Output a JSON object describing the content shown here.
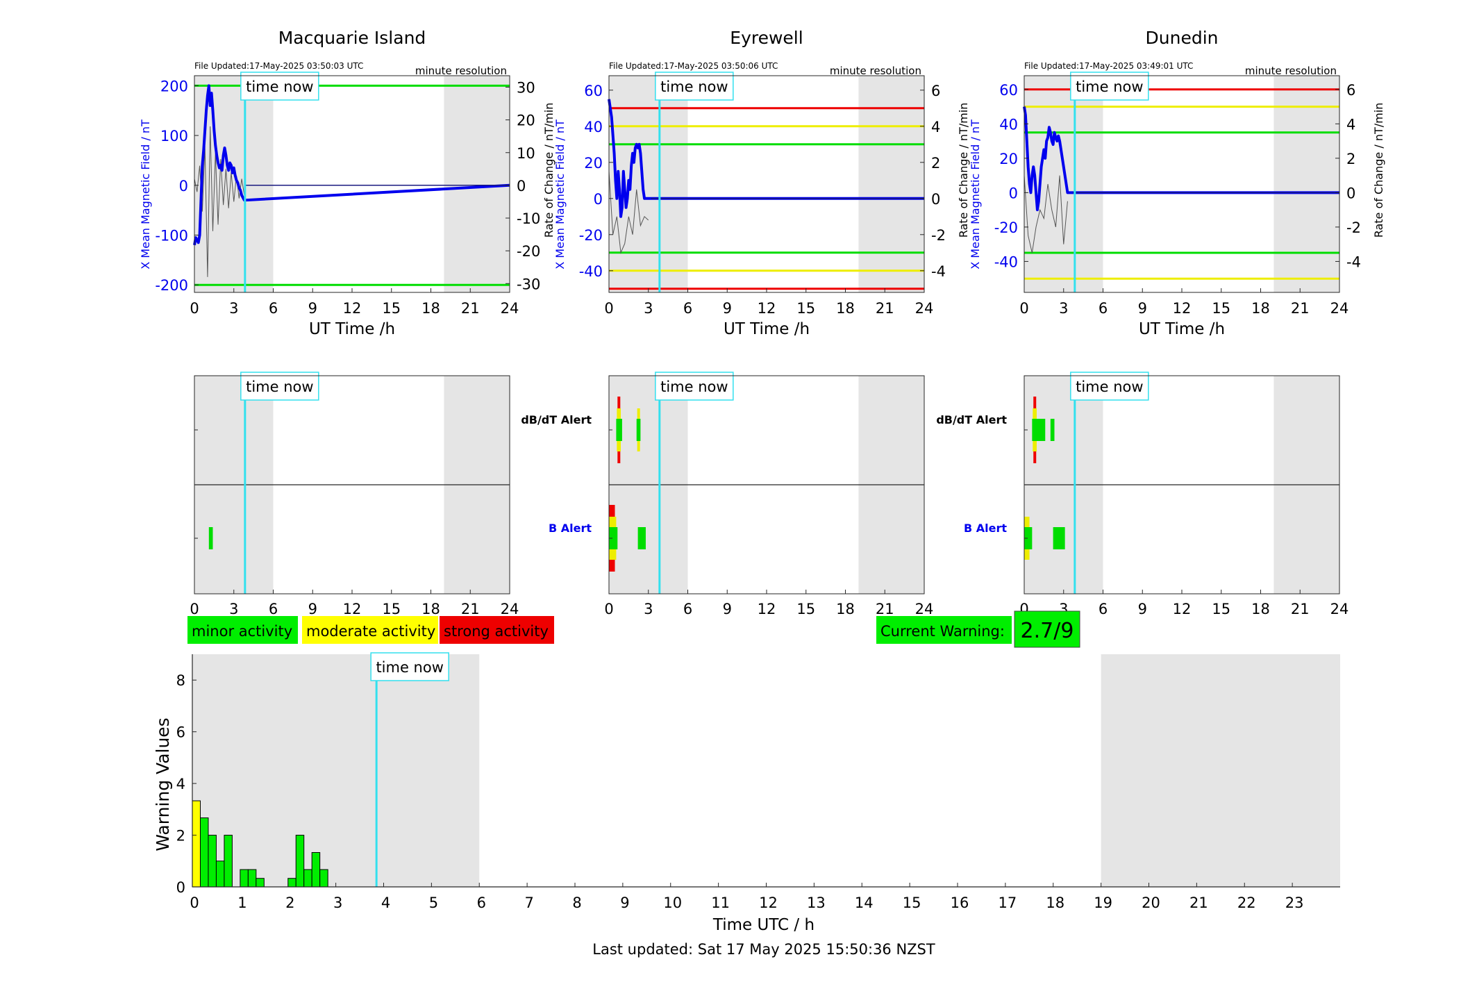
{
  "stations": [
    {
      "name": "Macquarie Island",
      "file_updated": "File Updated:17-May-2025 03:50:03 UTC",
      "resolution": "minute resolution",
      "ylabel": "X Mean Magnetic Field / nT",
      "y2label": "Rate of Change / nT/min",
      "ylim": [
        -215,
        220
      ],
      "yticks": [
        -200,
        -100,
        0,
        100,
        200
      ],
      "y2lim": [
        -32.7,
        33.5
      ],
      "y2ticks": [
        -30,
        -20,
        -10,
        0,
        10,
        20,
        30
      ],
      "thresholds": [
        {
          "value": 200,
          "color": "#00dd00"
        },
        {
          "value": -200,
          "color": "#00dd00"
        }
      ],
      "x_field": [
        0,
        0.1,
        0.2,
        0.3,
        0.4,
        0.5,
        0.6,
        0.7,
        0.8,
        0.9,
        1.0,
        1.1,
        1.2,
        1.3,
        1.4,
        1.5,
        1.6,
        1.7,
        1.8,
        1.9,
        2.0,
        2.1,
        2.2,
        2.3,
        2.4,
        2.5,
        2.6,
        2.7,
        2.8,
        2.9,
        3.0,
        3.1,
        3.2,
        3.3,
        3.4,
        3.5,
        3.6,
        3.7,
        3.8,
        24
      ],
      "y_field": [
        -120,
        -105,
        -110,
        -115,
        -100,
        -30,
        40,
        70,
        110,
        150,
        180,
        200,
        160,
        185,
        150,
        110,
        80,
        60,
        45,
        35,
        40,
        30,
        60,
        75,
        60,
        40,
        30,
        45,
        40,
        25,
        35,
        20,
        10,
        5,
        -5,
        -10,
        -20,
        -25,
        -30,
        0
      ],
      "roc_x": [
        0,
        0.2,
        0.4,
        0.6,
        0.8,
        1.0,
        1.2,
        1.4,
        1.6,
        1.8,
        2.0,
        2.2,
        2.4,
        2.6,
        2.8,
        3.0,
        3.2,
        3.4,
        3.6,
        3.8
      ],
      "roc_y": [
        2,
        -2,
        6,
        -8,
        12,
        -28,
        18,
        -14,
        10,
        -12,
        8,
        -6,
        5,
        -7,
        4,
        -5,
        3,
        -4,
        2,
        -3
      ],
      "alert_dbdt": [],
      "alert_b": [
        {
          "x0": 1.1,
          "x1": 1.4,
          "color": "#00dd00",
          "level": 1
        }
      ]
    },
    {
      "name": "Eyrewell",
      "file_updated": "File Updated:17-May-2025 03:50:06 UTC",
      "resolution": "minute resolution",
      "ylabel": "X Mean Magnetic Field / nT",
      "y2label": "Rate of Change / nT/min",
      "ylim": [
        -52,
        68
      ],
      "yticks": [
        -40,
        -20,
        0,
        20,
        40,
        60
      ],
      "y2lim": [
        -5.2,
        6.8
      ],
      "y2ticks": [
        -4,
        -2,
        0,
        2,
        4,
        6
      ],
      "thresholds": [
        {
          "value": 50,
          "color": "#ee0000"
        },
        {
          "value": 40,
          "color": "#eeee00"
        },
        {
          "value": 30,
          "color": "#00dd00"
        },
        {
          "value": -30,
          "color": "#00dd00"
        },
        {
          "value": -40,
          "color": "#eeee00"
        },
        {
          "value": -50,
          "color": "#ee0000"
        }
      ],
      "x_field": [
        0,
        0.1,
        0.2,
        0.3,
        0.4,
        0.5,
        0.6,
        0.7,
        0.8,
        0.9,
        1.0,
        1.1,
        1.2,
        1.3,
        1.4,
        1.5,
        1.6,
        1.7,
        1.8,
        1.9,
        2.0,
        2.1,
        2.2,
        2.3,
        2.4,
        2.5,
        2.6,
        2.7,
        2.8,
        2.9,
        3.0,
        3.1,
        3.2,
        24
      ],
      "y_field": [
        55,
        50,
        45,
        35,
        25,
        10,
        0,
        15,
        5,
        -10,
        -5,
        15,
        5,
        -5,
        0,
        10,
        5,
        18,
        25,
        20,
        28,
        30,
        28,
        30,
        25,
        15,
        5,
        0,
        0,
        0,
        0,
        0,
        0,
        0
      ],
      "roc_x": [
        0,
        0.3,
        0.6,
        0.9,
        1.2,
        1.5,
        1.8,
        2.1,
        2.4,
        2.7,
        3.0
      ],
      "roc_y": [
        1.5,
        -2,
        -1,
        -3,
        -2.5,
        -1,
        -2,
        0.5,
        -1.5,
        -1,
        -1.2
      ],
      "alert_dbdt": [
        {
          "x0": 0.55,
          "x1": 1.0,
          "color": "#00dd00",
          "level": 1
        },
        {
          "x0": 2.1,
          "x1": 2.4,
          "color": "#00dd00",
          "level": 1
        },
        {
          "x0": 0.6,
          "x1": 0.9,
          "color": "#eeee00",
          "level": 2
        },
        {
          "x0": 2.15,
          "x1": 2.35,
          "color": "#eeee00",
          "level": 2
        },
        {
          "x0": 0.65,
          "x1": 0.85,
          "color": "#ee0000",
          "level": 3
        }
      ],
      "alert_b": [
        {
          "x0": 0.0,
          "x1": 0.65,
          "color": "#00dd00",
          "level": 1
        },
        {
          "x0": 2.2,
          "x1": 2.8,
          "color": "#00dd00",
          "level": 1
        },
        {
          "x0": 0.0,
          "x1": 0.55,
          "color": "#eeee00",
          "level": 2
        },
        {
          "x0": 0.0,
          "x1": 0.45,
          "color": "#ee0000",
          "level": 3
        }
      ]
    },
    {
      "name": "Dunedin",
      "file_updated": "File Updated:17-May-2025 03:49:01 UTC",
      "resolution": "minute resolution",
      "ylabel": "X Mean Magnetic Field / nT",
      "y2label": "Rate of Change / nT/min",
      "ylim": [
        -58,
        68
      ],
      "yticks": [
        -40,
        -20,
        0,
        20,
        40,
        60
      ],
      "y2lim": [
        -5.8,
        6.8
      ],
      "y2ticks": [
        -4,
        -2,
        0,
        2,
        4,
        6
      ],
      "thresholds": [
        {
          "value": 60,
          "color": "#ee0000"
        },
        {
          "value": 50,
          "color": "#eeee00"
        },
        {
          "value": 35,
          "color": "#00dd00"
        },
        {
          "value": -35,
          "color": "#00dd00"
        },
        {
          "value": -50,
          "color": "#eeee00"
        }
      ],
      "x_field": [
        0,
        0.1,
        0.2,
        0.3,
        0.4,
        0.5,
        0.6,
        0.7,
        0.8,
        0.9,
        1.0,
        1.1,
        1.2,
        1.3,
        1.4,
        1.5,
        1.6,
        1.7,
        1.8,
        1.9,
        2.0,
        2.1,
        2.2,
        2.3,
        2.4,
        2.5,
        2.6,
        2.7,
        2.8,
        2.9,
        3.0,
        3.1,
        3.2,
        3.3,
        3.4,
        3.5,
        3.6,
        3.7,
        24
      ],
      "y_field": [
        50,
        45,
        30,
        15,
        5,
        0,
        10,
        15,
        10,
        0,
        -10,
        -5,
        5,
        15,
        20,
        25,
        20,
        30,
        32,
        38,
        35,
        30,
        28,
        35,
        32,
        30,
        33,
        30,
        25,
        20,
        15,
        10,
        5,
        0,
        0,
        0,
        0,
        0,
        0
      ],
      "roc_x": [
        0,
        0.3,
        0.6,
        0.9,
        1.2,
        1.5,
        1.8,
        2.1,
        2.4,
        2.7,
        3.0,
        3.3
      ],
      "roc_y": [
        1,
        -2.5,
        -3.5,
        -2,
        -1,
        -1.5,
        0.5,
        -1,
        -2,
        1,
        -3,
        -0.5
      ],
      "alert_dbdt": [
        {
          "x0": 0.6,
          "x1": 1.6,
          "color": "#00dd00",
          "level": 1
        },
        {
          "x0": 2.0,
          "x1": 2.3,
          "color": "#00dd00",
          "level": 1
        },
        {
          "x0": 0.65,
          "x1": 0.95,
          "color": "#eeee00",
          "level": 2
        },
        {
          "x0": 0.7,
          "x1": 0.9,
          "color": "#ee0000",
          "level": 3
        }
      ],
      "alert_b": [
        {
          "x0": 0.0,
          "x1": 0.6,
          "color": "#00dd00",
          "level": 1
        },
        {
          "x0": 2.2,
          "x1": 3.1,
          "color": "#00dd00",
          "level": 1
        },
        {
          "x0": 0.0,
          "x1": 0.4,
          "color": "#eeee00",
          "level": 2
        }
      ]
    }
  ],
  "common": {
    "xlabel": "UT Time /h",
    "xlim": [
      0,
      24
    ],
    "xticks": [
      0,
      3,
      6,
      9,
      12,
      15,
      18,
      21,
      24
    ],
    "night_shade": [
      [
        0,
        6
      ],
      [
        19,
        24
      ]
    ],
    "time_now_label": "time now",
    "time_now_hour": 3.85,
    "colors": {
      "field_line": "#0000ee",
      "roc_line": "#555555",
      "time_now": "#33e0ee",
      "shade": "#e5e5e5",
      "minor": "#00ee00",
      "moderate": "#ffff00",
      "strong": "#ee0000"
    }
  },
  "alerts": {
    "dbdt_label": "dB/dT Alert",
    "b_label": "B Alert"
  },
  "legend": {
    "minor": "minor activity",
    "moderate": "moderate activity",
    "strong": "strong activity"
  },
  "current_warning": {
    "label": "Current Warning:",
    "value": "2.7/9"
  },
  "warning_chart": {
    "ylabel": "Warning Values",
    "xlabel": "Time UTC / h",
    "xlim": [
      0,
      24
    ],
    "ylim": [
      0,
      9
    ],
    "yticks": [
      0,
      2,
      4,
      6,
      8
    ],
    "xticks": [
      0,
      1,
      2,
      3,
      4,
      5,
      6,
      7,
      8,
      9,
      10,
      11,
      12,
      13,
      14,
      15,
      16,
      17,
      18,
      19,
      20,
      21,
      22,
      23
    ],
    "night_shade": [
      [
        0,
        6
      ],
      [
        19,
        24
      ]
    ]
  },
  "chart_data": {
    "type": "bar",
    "bar_width_h": 0.1667,
    "x": [
      0.0,
      0.1667,
      0.3333,
      0.5,
      0.6667,
      1.0,
      1.1667,
      1.3333,
      2.0,
      2.1667,
      2.3333,
      2.5,
      2.6667
    ],
    "values": [
      3.33,
      2.67,
      2.0,
      1.0,
      2.0,
      0.67,
      0.67,
      0.33,
      0.33,
      2.0,
      0.67,
      1.33,
      0.67
    ],
    "colors": [
      "#ffff00",
      "#00ee00",
      "#00ee00",
      "#00ee00",
      "#00ee00",
      "#00ee00",
      "#00ee00",
      "#00ee00",
      "#00ee00",
      "#00ee00",
      "#00ee00",
      "#00ee00",
      "#00ee00"
    ],
    "xlabel": "Time UTC / h",
    "ylabel": "Warning Values",
    "ylim": [
      0,
      9
    ]
  },
  "footer": {
    "last_updated": "Last updated: Sat 17 May 2025 15:50:36 NZST"
  }
}
